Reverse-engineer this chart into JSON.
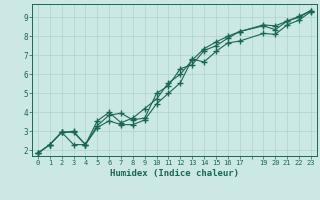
{
  "xlabel": "Humidex (Indice chaleur)",
  "bg_color": "#cce8e4",
  "grid_color": "#b0d8d0",
  "line_color": "#1a6655",
  "xlim": [
    -0.5,
    23.5
  ],
  "ylim": [
    1.7,
    9.7
  ],
  "xtick_positions": [
    0,
    1,
    2,
    3,
    4,
    5,
    6,
    7,
    8,
    9,
    10,
    11,
    12,
    13,
    14,
    15,
    16,
    17,
    18,
    19,
    20,
    21,
    22,
    23
  ],
  "xtick_labels": [
    "0",
    "1",
    "2",
    "3",
    "4",
    "5",
    "6",
    "7",
    "8",
    "9",
    "10",
    "11",
    "12",
    "13",
    "14",
    "15",
    "16",
    "17",
    "",
    "19",
    "20",
    "21",
    "22",
    "23"
  ],
  "ytick_positions": [
    2,
    3,
    4,
    5,
    6,
    7,
    8,
    9
  ],
  "ytick_labels": [
    "2",
    "3",
    "4",
    "5",
    "6",
    "7",
    "8",
    "9"
  ],
  "line1_x": [
    0,
    1,
    2,
    3,
    4,
    5,
    6,
    7,
    8,
    9,
    10,
    11,
    12,
    13,
    14,
    15,
    16,
    17,
    19,
    20,
    21,
    22,
    23
  ],
  "line1_y": [
    1.85,
    2.3,
    2.95,
    2.3,
    2.3,
    3.2,
    3.55,
    3.35,
    3.35,
    3.6,
    4.45,
    5.0,
    5.55,
    6.8,
    6.65,
    7.2,
    7.65,
    7.75,
    8.15,
    8.1,
    8.6,
    8.85,
    9.3
  ],
  "line2_x": [
    0,
    1,
    2,
    3,
    4,
    5,
    6,
    7,
    8,
    9,
    10,
    11,
    12,
    13,
    14,
    15,
    16,
    17,
    19,
    20,
    21,
    22,
    23
  ],
  "line2_y": [
    1.85,
    2.3,
    2.95,
    3.0,
    2.3,
    3.3,
    3.85,
    3.95,
    3.6,
    3.7,
    5.0,
    5.4,
    6.3,
    6.5,
    7.25,
    7.5,
    7.9,
    8.25,
    8.55,
    8.35,
    8.8,
    9.0,
    9.35
  ],
  "line3_x": [
    0,
    1,
    2,
    3,
    4,
    5,
    6,
    7,
    8,
    9,
    10,
    11,
    12,
    13,
    14,
    15,
    16,
    17,
    19,
    20,
    21,
    22,
    23
  ],
  "line3_y": [
    1.85,
    2.3,
    2.95,
    2.95,
    2.3,
    3.55,
    4.0,
    3.45,
    3.7,
    4.2,
    4.7,
    5.55,
    6.0,
    6.75,
    7.35,
    7.7,
    8.0,
    8.25,
    8.6,
    8.55,
    8.8,
    9.05,
    9.35
  ]
}
